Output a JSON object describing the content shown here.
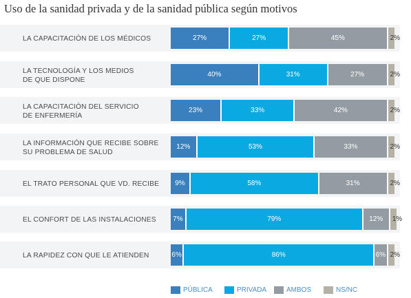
{
  "title": "Uso de la sanidad privada y de la sanidad pública según motivos",
  "colors": {
    "publica": "#3a80be",
    "privada": "#0aa9e2",
    "ambos": "#949ca3",
    "nsnc": "#b5b1a7"
  },
  "chart_data": {
    "type": "bar",
    "orientation": "horizontal",
    "stacked": true,
    "title": "Uso de la sanidad privada y de la sanidad pública según motivos",
    "categories": [
      "LA CAPACITACIÓN DE LOS MÉDICOS",
      "LA TECNOLOGÍA Y LOS MEDIOS\nDE QUE DISPONE",
      "LA CAPACITACIÓN DEL SERVICIO\nDE ENFERMERÍA",
      "LA INFORMACIÓN QUE RECIBE SOBRE\nSU PROBLEMA DE SALUD",
      "EL TRATO PERSONAL QUE VD. RECIBE",
      "EL CONFORT DE LAS INSTALACIONES",
      "LA RAPIDEZ CON QUE LE ATIENDEN"
    ],
    "series": [
      {
        "name": "PÚBLICA",
        "key": "publica",
        "values": [
          27,
          40,
          23,
          12,
          9,
          7,
          6
        ]
      },
      {
        "name": "PRIVADA",
        "key": "privada",
        "values": [
          27,
          31,
          33,
          53,
          58,
          79,
          86
        ]
      },
      {
        "name": "AMBOS",
        "key": "ambos",
        "values": [
          45,
          27,
          42,
          33,
          31,
          12,
          6
        ]
      },
      {
        "name": "NS/NC",
        "key": "nsnc",
        "values": [
          2,
          2,
          2,
          2,
          2,
          1,
          2
        ]
      }
    ],
    "unit": "%",
    "legend_position": "bottom"
  }
}
